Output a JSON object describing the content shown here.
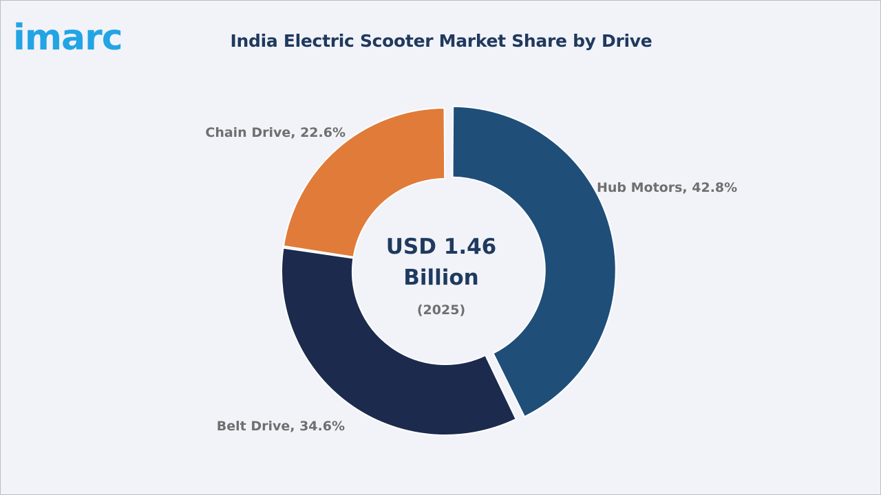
{
  "logo": {
    "text": "imarc"
  },
  "chart_data": {
    "type": "pie",
    "title": "India Electric Scooter Market Share by Drive",
    "center_text": {
      "line1": "USD 1.46",
      "line2": "Billion",
      "line3": "(2025)"
    },
    "categories": [
      "Hub Motors",
      "Belt Drive",
      "Chain Drive"
    ],
    "values": [
      42.8,
      34.6,
      22.6
    ],
    "labels": [
      "Hub Motors, 42.8%",
      "Belt Drive, 34.6%",
      "Chain Drive, 22.6%"
    ],
    "colors": [
      "#1f4e79",
      "#1c2a4d",
      "#e07b39"
    ],
    "donut": true
  }
}
